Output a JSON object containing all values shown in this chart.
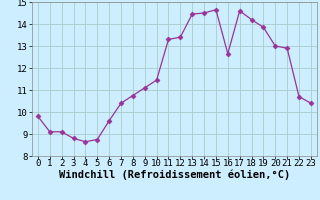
{
  "x": [
    0,
    1,
    2,
    3,
    4,
    5,
    6,
    7,
    8,
    9,
    10,
    11,
    12,
    13,
    14,
    15,
    16,
    17,
    18,
    19,
    20,
    21,
    22,
    23
  ],
  "y": [
    9.8,
    9.1,
    9.1,
    8.8,
    8.65,
    8.75,
    9.6,
    10.4,
    10.75,
    11.1,
    11.45,
    13.3,
    13.4,
    14.45,
    14.5,
    14.65,
    12.65,
    14.6,
    14.2,
    13.85,
    13.0,
    12.9,
    10.7,
    10.4
  ],
  "line_color": "#993399",
  "marker": "D",
  "marker_size": 2.5,
  "background_color": "#cceeff",
  "grid_color": "#aacccc",
  "xlabel": "Windchill (Refroidissement éolien,°C)",
  "xlim": [
    -0.5,
    23.5
  ],
  "ylim": [
    8,
    15
  ],
  "yticks": [
    8,
    9,
    10,
    11,
    12,
    13,
    14,
    15
  ],
  "xticks": [
    0,
    1,
    2,
    3,
    4,
    5,
    6,
    7,
    8,
    9,
    10,
    11,
    12,
    13,
    14,
    15,
    16,
    17,
    18,
    19,
    20,
    21,
    22,
    23
  ],
  "tick_fontsize": 6.5,
  "xlabel_fontsize": 7.5
}
